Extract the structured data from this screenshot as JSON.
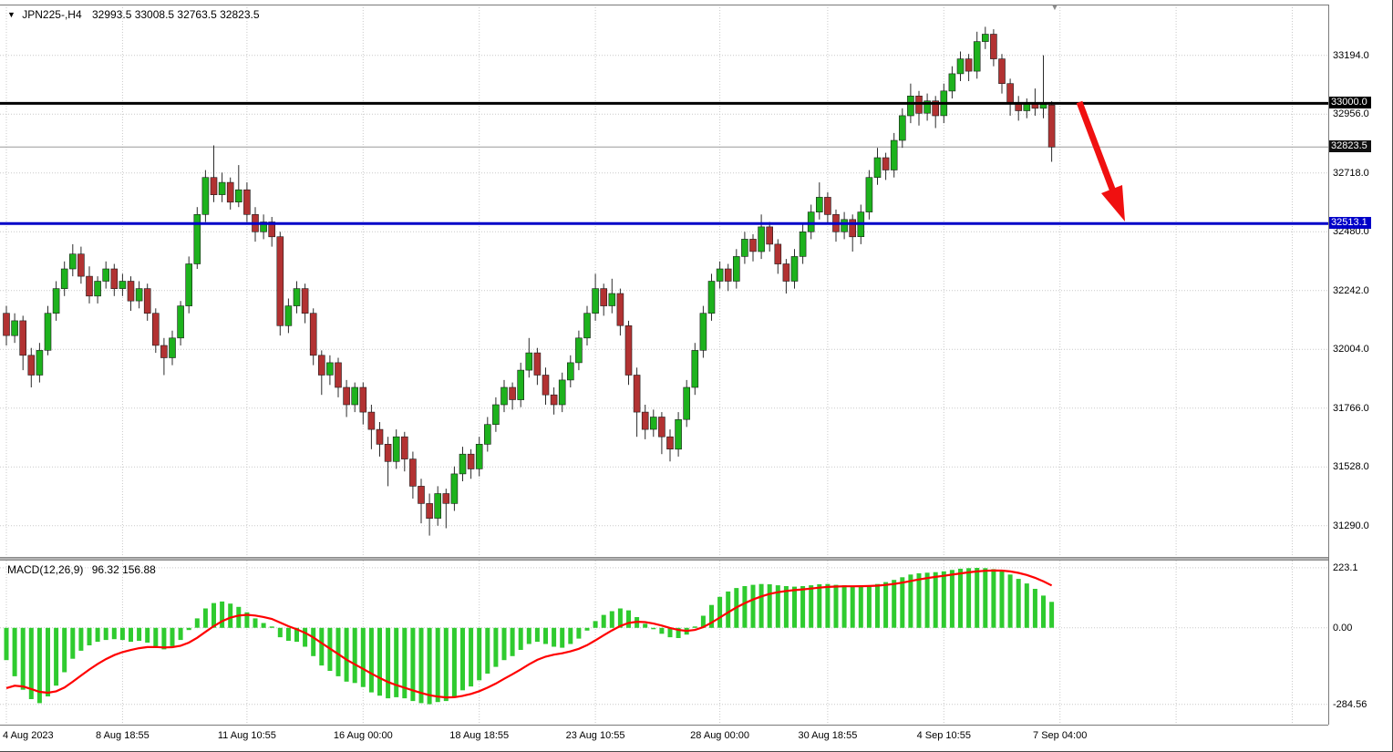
{
  "title": {
    "symbol_period": "JPN225-,H4",
    "ohlc_text": "32993.5 33008.5 32763.5 32823.5"
  },
  "icons": {
    "dropdown": "▼",
    "shift_marker": "▼"
  },
  "colors": {
    "background": "#FFFFFF",
    "grid": "#C9C9C9",
    "bull": "#1DB21D",
    "bear": "#B23232",
    "wick": "#2B2B2B",
    "candle_border": "#1C1C1C",
    "macd_bar": "#2FCB2F",
    "signal": "#FF0000",
    "price_tag_bg": "#101010",
    "current_price_line": "#9A9A9A",
    "text": "#000000"
  },
  "chart_data": {
    "type": "candlestick",
    "symbol": "JPN225-",
    "timeframe": "H4",
    "last_ohlc": {
      "open": 32993.5,
      "high": 33008.5,
      "low": 32763.5,
      "close": 32823.5
    },
    "ylim": [
      31160,
      33400
    ],
    "yticks": [
      33194.0,
      32956.0,
      32718.0,
      32480.0,
      32242.0,
      32004.0,
      31766.0,
      31528.0,
      31290.0
    ],
    "xticks": [
      {
        "i": 0,
        "label": "4 Aug 2023"
      },
      {
        "i": 14,
        "label": "8 Aug 18:55"
      },
      {
        "i": 29,
        "label": "11 Aug 10:55"
      },
      {
        "i": 43,
        "label": "16 Aug 00:00"
      },
      {
        "i": 57,
        "label": "18 Aug 18:55"
      },
      {
        "i": 71,
        "label": "23 Aug 10:55"
      },
      {
        "i": 86,
        "label": "28 Aug 00:00"
      },
      {
        "i": 99,
        "label": "30 Aug 18:55"
      },
      {
        "i": 113,
        "label": "4 Sep 10:55"
      },
      {
        "i": 127,
        "label": "7 Sep 04:00"
      },
      {
        "i": 141,
        "label": ""
      },
      {
        "i": 155,
        "label": ""
      }
    ],
    "hlines": [
      {
        "price": 33000.0,
        "label": "33000.0",
        "color": "#000000"
      },
      {
        "price": 32513.1,
        "label": "32513.1",
        "color": "#0000C8"
      }
    ],
    "price_marker": {
      "price": 32823.5,
      "label": "32823.5"
    },
    "annotation_arrow": {
      "type": "arrow",
      "direction": "down-right",
      "color": "#F01010",
      "from_price": 32980,
      "to_price": 32520
    },
    "candles": [
      [
        32150,
        32180,
        32020,
        32060
      ],
      [
        32060,
        32150,
        32030,
        32120
      ],
      [
        32120,
        32140,
        31920,
        31980
      ],
      [
        31980,
        32010,
        31850,
        31900
      ],
      [
        31900,
        32030,
        31870,
        32000
      ],
      [
        32000,
        32180,
        31980,
        32150
      ],
      [
        32150,
        32280,
        32120,
        32250
      ],
      [
        32250,
        32360,
        32220,
        32330
      ],
      [
        32330,
        32430,
        32300,
        32390
      ],
      [
        32390,
        32420,
        32270,
        32300
      ],
      [
        32300,
        32340,
        32190,
        32220
      ],
      [
        32220,
        32300,
        32190,
        32280
      ],
      [
        32280,
        32360,
        32250,
        32330
      ],
      [
        32330,
        32350,
        32220,
        32250
      ],
      [
        32250,
        32310,
        32220,
        32280
      ],
      [
        32280,
        32300,
        32160,
        32200
      ],
      [
        32200,
        32280,
        32170,
        32250
      ],
      [
        32250,
        32270,
        32120,
        32150
      ],
      [
        32150,
        32170,
        31990,
        32020
      ],
      [
        32020,
        32050,
        31900,
        31970
      ],
      [
        31970,
        32080,
        31940,
        32050
      ],
      [
        32050,
        32200,
        32020,
        32180
      ],
      [
        32180,
        32380,
        32150,
        32350
      ],
      [
        32350,
        32580,
        32330,
        32550
      ],
      [
        32550,
        32730,
        32520,
        32700
      ],
      [
        32700,
        32830,
        32600,
        32630
      ],
      [
        32630,
        32720,
        32600,
        32680
      ],
      [
        32680,
        32700,
        32570,
        32600
      ],
      [
        32600,
        32750,
        32580,
        32650
      ],
      [
        32650,
        32680,
        32520,
        32550
      ],
      [
        32550,
        32580,
        32440,
        32480
      ],
      [
        32480,
        32550,
        32450,
        32520
      ],
      [
        32520,
        32540,
        32420,
        32460
      ],
      [
        32460,
        32480,
        32060,
        32100
      ],
      [
        32100,
        32210,
        32070,
        32180
      ],
      [
        32180,
        32280,
        32150,
        32250
      ],
      [
        32250,
        32270,
        32110,
        32150
      ],
      [
        32150,
        32170,
        31940,
        31980
      ],
      [
        31980,
        32000,
        31820,
        31900
      ],
      [
        31900,
        31980,
        31860,
        31950
      ],
      [
        31950,
        31970,
        31810,
        31850
      ],
      [
        31850,
        31880,
        31730,
        31780
      ],
      [
        31780,
        31870,
        31750,
        31850
      ],
      [
        31850,
        31870,
        31700,
        31750
      ],
      [
        31750,
        31780,
        31600,
        31680
      ],
      [
        31680,
        31710,
        31570,
        31620
      ],
      [
        31620,
        31650,
        31450,
        31550
      ],
      [
        31550,
        31680,
        31520,
        31650
      ],
      [
        31650,
        31670,
        31510,
        31560
      ],
      [
        31560,
        31590,
        31400,
        31450
      ],
      [
        31450,
        31480,
        31300,
        31380
      ],
      [
        31380,
        31420,
        31250,
        31320
      ],
      [
        31320,
        31450,
        31290,
        31420
      ],
      [
        31420,
        31440,
        31280,
        31380
      ],
      [
        31380,
        31530,
        31350,
        31500
      ],
      [
        31500,
        31610,
        31470,
        31580
      ],
      [
        31580,
        31600,
        31480,
        31520
      ],
      [
        31520,
        31650,
        31490,
        31620
      ],
      [
        31620,
        31730,
        31590,
        31700
      ],
      [
        31700,
        31810,
        31670,
        31780
      ],
      [
        31780,
        31880,
        31750,
        31850
      ],
      [
        31850,
        31870,
        31760,
        31800
      ],
      [
        31800,
        31950,
        31770,
        31920
      ],
      [
        31920,
        32050,
        31890,
        31990
      ],
      [
        31990,
        32010,
        31860,
        31900
      ],
      [
        31900,
        31930,
        31780,
        31820
      ],
      [
        31820,
        31850,
        31740,
        31780
      ],
      [
        31780,
        31910,
        31750,
        31880
      ],
      [
        31880,
        31980,
        31850,
        31950
      ],
      [
        31950,
        32080,
        31920,
        32050
      ],
      [
        32050,
        32180,
        32020,
        32150
      ],
      [
        32150,
        32310,
        32120,
        32250
      ],
      [
        32250,
        32270,
        32140,
        32180
      ],
      [
        32180,
        32290,
        32150,
        32230
      ],
      [
        32230,
        32250,
        32060,
        32100
      ],
      [
        32100,
        32120,
        31860,
        31900
      ],
      [
        31900,
        31930,
        31650,
        31750
      ],
      [
        31750,
        31780,
        31640,
        31680
      ],
      [
        31680,
        31760,
        31650,
        31730
      ],
      [
        31730,
        31750,
        31580,
        31650
      ],
      [
        31650,
        31680,
        31550,
        31600
      ],
      [
        31600,
        31750,
        31570,
        31720
      ],
      [
        31720,
        31880,
        31690,
        31850
      ],
      [
        31850,
        32030,
        31820,
        32000
      ],
      [
        32000,
        32180,
        31970,
        32150
      ],
      [
        32150,
        32310,
        32120,
        32280
      ],
      [
        32280,
        32360,
        32250,
        32330
      ],
      [
        32330,
        32350,
        32240,
        32280
      ],
      [
        32280,
        32410,
        32250,
        32380
      ],
      [
        32380,
        32480,
        32350,
        32450
      ],
      [
        32450,
        32470,
        32360,
        32400
      ],
      [
        32400,
        32550,
        32370,
        32500
      ],
      [
        32500,
        32520,
        32400,
        32430
      ],
      [
        32430,
        32450,
        32310,
        32350
      ],
      [
        32350,
        32370,
        32230,
        32280
      ],
      [
        32280,
        32410,
        32250,
        32380
      ],
      [
        32380,
        32510,
        32350,
        32480
      ],
      [
        32480,
        32590,
        32450,
        32560
      ],
      [
        32560,
        32680,
        32530,
        32620
      ],
      [
        32620,
        32640,
        32510,
        32550
      ],
      [
        32550,
        32570,
        32440,
        32480
      ],
      [
        32480,
        32560,
        32450,
        32530
      ],
      [
        32530,
        32550,
        32400,
        32460
      ],
      [
        32460,
        32590,
        32430,
        32560
      ],
      [
        32560,
        32730,
        32530,
        32700
      ],
      [
        32700,
        32820,
        32670,
        32780
      ],
      [
        32780,
        32800,
        32690,
        32730
      ],
      [
        32730,
        32880,
        32700,
        32850
      ],
      [
        32850,
        32980,
        32820,
        32950
      ],
      [
        32950,
        33080,
        32920,
        33030
      ],
      [
        33030,
        33050,
        32910,
        32960
      ],
      [
        32960,
        33040,
        32930,
        33010
      ],
      [
        33010,
        33030,
        32900,
        32950
      ],
      [
        32950,
        33080,
        32920,
        33050
      ],
      [
        33050,
        33150,
        33020,
        33120
      ],
      [
        33120,
        33210,
        33090,
        33180
      ],
      [
        33180,
        33200,
        33090,
        33130
      ],
      [
        33130,
        33290,
        33100,
        33250
      ],
      [
        33250,
        33310,
        33220,
        33280
      ],
      [
        33280,
        33300,
        33150,
        33180
      ],
      [
        33180,
        33200,
        33040,
        33080
      ],
      [
        33080,
        33100,
        32950,
        33000
      ],
      [
        33000,
        33030,
        32930,
        32970
      ],
      [
        32970,
        33020,
        32940,
        33000
      ],
      [
        33000,
        33060,
        32950,
        32980
      ],
      [
        32980,
        33195,
        32940,
        32995
      ],
      [
        32993.5,
        33008.5,
        32763.5,
        32823.5
      ]
    ],
    "macd": {
      "label": "MACD(12,26,9)",
      "values_text": "96.32 156.88",
      "macd_value": 96.32,
      "signal_value": 156.88,
      "ylim": [
        -360,
        250
      ],
      "yticks": [
        {
          "value": 223.1,
          "label": "223.1"
        },
        {
          "value": 0,
          "label": "0.00"
        },
        {
          "value": -284.56,
          "label": "-284.56"
        }
      ],
      "signal_start": -250,
      "histogram": [
        -120,
        -180,
        -230,
        -265,
        -280,
        -255,
        -215,
        -165,
        -115,
        -85,
        -65,
        -52,
        -45,
        -42,
        -45,
        -52,
        -48,
        -55,
        -70,
        -80,
        -68,
        -45,
        -8,
        35,
        72,
        92,
        98,
        90,
        78,
        58,
        35,
        18,
        5,
        -35,
        -48,
        -52,
        -70,
        -105,
        -140,
        -160,
        -180,
        -200,
        -205,
        -220,
        -240,
        -252,
        -262,
        -258,
        -262,
        -272,
        -280,
        -284,
        -276,
        -272,
        -255,
        -232,
        -218,
        -195,
        -170,
        -145,
        -120,
        -105,
        -82,
        -60,
        -52,
        -60,
        -70,
        -74,
        -60,
        -40,
        -10,
        25,
        48,
        62,
        72,
        65,
        40,
        15,
        -5,
        -22,
        -35,
        -38,
        -25,
        5,
        45,
        85,
        115,
        135,
        148,
        155,
        160,
        163,
        162,
        158,
        155,
        153,
        155,
        158,
        162,
        163,
        160,
        158,
        155,
        155,
        158,
        163,
        170,
        178,
        188,
        198,
        203,
        205,
        207,
        210,
        215,
        220,
        222,
        223,
        222,
        218,
        210,
        198,
        182,
        165,
        145,
        120,
        96.32
      ]
    }
  }
}
